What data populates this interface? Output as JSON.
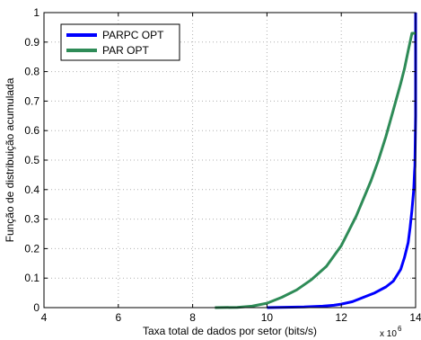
{
  "chart_data": {
    "type": "line",
    "title": "",
    "xlabel": "Taxa total de dados por setor (bits/s)",
    "ylabel": "Função de distribuição acumulada",
    "x_multiplier_label": "x 10",
    "x_multiplier_exponent": "6",
    "xlim": [
      4,
      14
    ],
    "ylim": [
      0,
      1
    ],
    "xticks": [
      4,
      6,
      8,
      10,
      12,
      14
    ],
    "yticks": [
      0,
      0.1,
      0.2,
      0.3,
      0.4,
      0.5,
      0.6,
      0.7,
      0.8,
      0.9,
      1
    ],
    "xtick_labels": [
      "4",
      "6",
      "8",
      "10",
      "12",
      "14"
    ],
    "ytick_labels": [
      "0",
      "0.1",
      "0.2",
      "0.3",
      "0.4",
      "0.5",
      "0.6",
      "0.7",
      "0.8",
      "0.9",
      "1"
    ],
    "grid": true,
    "legend_position": "top-left",
    "series": [
      {
        "name": "PARPC OPT",
        "color": "#0000ff",
        "x": [
          10.0,
          11.0,
          11.5,
          11.8,
          12.0,
          12.3,
          12.6,
          12.9,
          13.2,
          13.4,
          13.6,
          13.7,
          13.8,
          13.85,
          13.9,
          13.95,
          13.97,
          13.98,
          14.0,
          14.0
        ],
        "y": [
          0.0,
          0.002,
          0.005,
          0.008,
          0.012,
          0.02,
          0.035,
          0.05,
          0.07,
          0.09,
          0.13,
          0.17,
          0.22,
          0.27,
          0.33,
          0.4,
          0.46,
          0.48,
          0.65,
          1.0
        ]
      },
      {
        "name": "PAR OPT",
        "color": "#2e8b57",
        "x": [
          8.6,
          9.2,
          9.6,
          10.0,
          10.4,
          10.8,
          11.2,
          11.6,
          12.0,
          12.4,
          12.8,
          13.0,
          13.2,
          13.4,
          13.6,
          13.7,
          13.8,
          13.85,
          13.9,
          14.0
        ],
        "y": [
          0.0,
          0.001,
          0.005,
          0.015,
          0.035,
          0.06,
          0.095,
          0.14,
          0.21,
          0.31,
          0.43,
          0.5,
          0.58,
          0.67,
          0.76,
          0.81,
          0.87,
          0.9,
          0.93,
          0.93
        ]
      }
    ]
  }
}
